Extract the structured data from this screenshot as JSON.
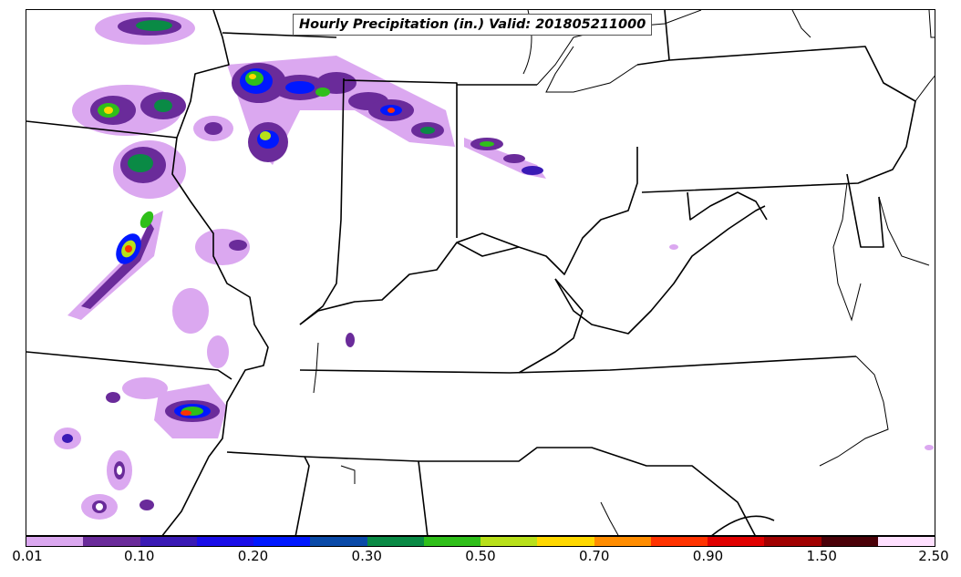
{
  "title": "Hourly Precipitation (in.) Valid: 201805211000",
  "legend": {
    "colors": [
      "#dba8f0",
      "#6a2b9a",
      "#3a1ab5",
      "#1a0de8",
      "#0018ff",
      "#0a4aa8",
      "#0a8a45",
      "#2fbf1a",
      "#b8e01a",
      "#ffd800",
      "#ff8c00",
      "#ff3300",
      "#e00000",
      "#a00000",
      "#4a0008",
      "#ffe0ff"
    ],
    "ticks": [
      "0.01",
      "0.10",
      "0.20",
      "0.30",
      "0.50",
      "0.70",
      "0.90",
      "1.50",
      "2.50"
    ]
  }
}
